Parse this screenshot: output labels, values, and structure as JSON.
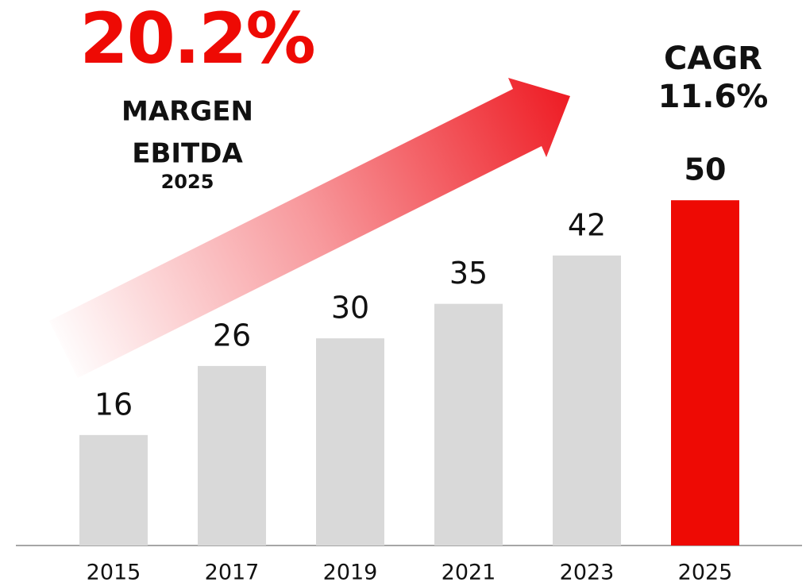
{
  "chart_data": {
    "type": "bar",
    "categories": [
      "2015",
      "2017",
      "2019",
      "2021",
      "2023",
      "2025"
    ],
    "values": [
      16,
      26,
      30,
      35,
      42,
      50
    ],
    "colors": [
      "#d9d9d9",
      "#d9d9d9",
      "#d9d9d9",
      "#d9d9d9",
      "#d9d9d9",
      "#ee0a04"
    ],
    "ylim": [
      0,
      79
    ],
    "annotations": {
      "margin_value": "20.2%",
      "margin_line1": "MARGEN",
      "margin_line2": "EBITDA",
      "margin_year": "2025",
      "cagr_label": "CAGR",
      "cagr_value": "11.6%"
    }
  }
}
